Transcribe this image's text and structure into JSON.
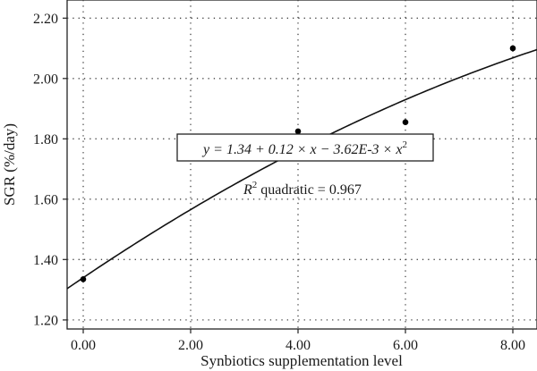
{
  "chart_data": {
    "type": "scatter",
    "xlabel": "Synbiotics supplementation level",
    "ylabel": "SGR (%/day)",
    "xlim": [
      -0.3,
      8.45
    ],
    "ylim": [
      1.17,
      2.26
    ],
    "xticks": [
      "0.00",
      "2.00",
      "4.00",
      "6.00",
      "8.00"
    ],
    "xtick_values": [
      0,
      2,
      4,
      6,
      8
    ],
    "yticks": [
      "1.20",
      "1.40",
      "1.60",
      "1.80",
      "2.00",
      "2.20"
    ],
    "ytick_values": [
      1.2,
      1.4,
      1.6,
      1.8,
      2.0,
      2.2
    ],
    "grid": true,
    "grid_style": "dotted",
    "series": [
      {
        "values": [
          {
            "x": 0,
            "y": 1.335
          },
          {
            "x": 4,
            "y": 1.825
          },
          {
            "x": 6,
            "y": 1.855
          },
          {
            "x": 8,
            "y": 2.1
          }
        ]
      }
    ],
    "fit": {
      "type": "quadratic",
      "coefficients": [
        1.34,
        0.12,
        -0.00362
      ],
      "equation_label": {
        "prefix": "y = 1.34 + 0.12 × x − 3.62E-3 × x",
        "superscript": "2"
      },
      "r2_label": {
        "symbol": "R",
        "superscript": "2",
        "text": " quadratic = 0.967"
      }
    }
  }
}
